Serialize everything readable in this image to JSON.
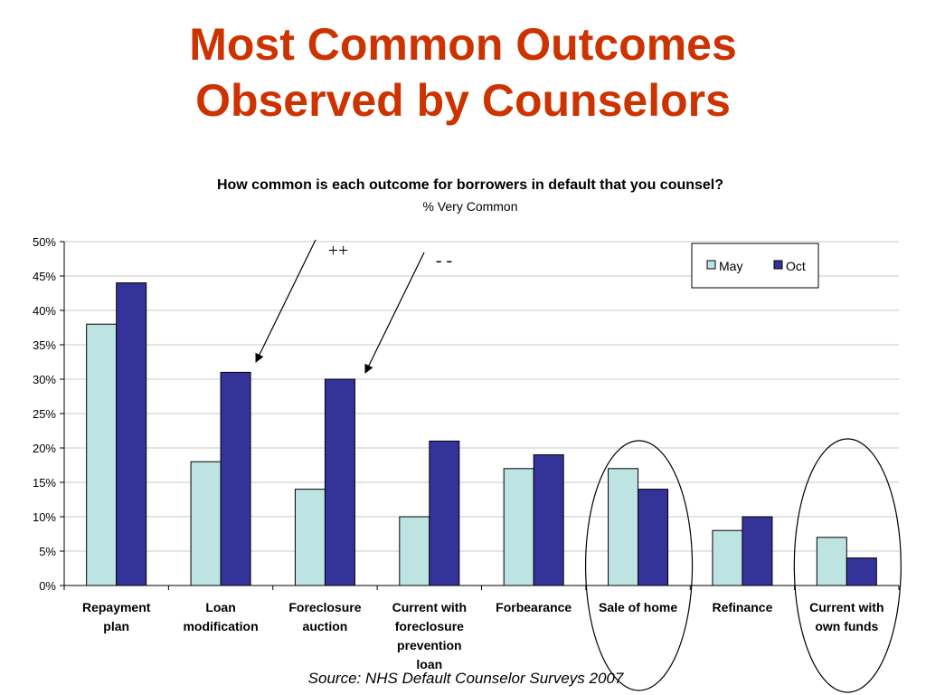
{
  "slide": {
    "title_line1": "Most Common Outcomes",
    "title_line2": "Observed by Counselors",
    "source": "Source: NHS Default Counselor Surveys 2007"
  },
  "colors": {
    "title": "#cc3300",
    "may": "#bde3e3",
    "oct": "#33339a",
    "grid": "#c8c8c8"
  },
  "chart_data": {
    "type": "bar",
    "title": "How common is each outcome for borrowers in default that you counsel?",
    "subtitle": "% Very Common",
    "categories": [
      [
        "Repayment",
        "plan"
      ],
      [
        "Loan",
        "modification"
      ],
      [
        "Foreclosure",
        "auction"
      ],
      [
        "Current with",
        "foreclosure",
        "prevention",
        "loan"
      ],
      [
        "Forbearance"
      ],
      [
        "Sale of home"
      ],
      [
        "Refinance"
      ],
      [
        "Current with",
        "own funds"
      ]
    ],
    "series": [
      {
        "name": "May",
        "values": [
          38,
          18,
          14,
          10,
          17,
          17,
          8,
          7
        ]
      },
      {
        "name": "Oct",
        "values": [
          44,
          31,
          30,
          21,
          19,
          14,
          10,
          4
        ]
      }
    ],
    "ylim": [
      0,
      50
    ],
    "yticks": [
      0,
      5,
      10,
      15,
      20,
      25,
      30,
      35,
      40,
      45,
      50
    ],
    "ytick_suffix": "%",
    "grid": true,
    "legend_position": "top-right",
    "annotations": [
      {
        "text": "++",
        "category_index": 1
      },
      {
        "text": "- -",
        "category_index": 2
      }
    ],
    "highlighted_categories": [
      5,
      7
    ]
  }
}
